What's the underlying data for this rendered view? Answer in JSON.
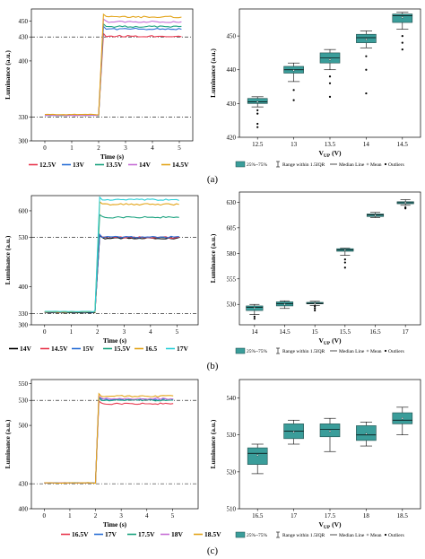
{
  "colors": {
    "box_fill": "#3a9d9a",
    "box_edge": "#1f4d4b",
    "refline": "#000000",
    "v1": "#e8384f",
    "v2": "#2a6fd6",
    "v3": "#1aa27f",
    "v4": "#c66ed6",
    "v5": "#e3a51b",
    "v6": "#2ad0d8"
  },
  "panel_labels": [
    "(a)",
    "(b)",
    "(c)"
  ],
  "box_legend": {
    "box": "25%~75%",
    "range": "Range within 1.5IQR",
    "median": "Median Line",
    "mean": "Mean",
    "outliers": "Outliers"
  },
  "chart_data": [
    {
      "type": "line",
      "panel": "(a)",
      "xlabel": "Time (s)",
      "ylabel": "Luminance (a.u.)",
      "xlim": [
        -0.5,
        5.5
      ],
      "ylim": [
        300,
        465
      ],
      "xticks": [
        "0",
        "1",
        "2",
        "3",
        "4",
        "5"
      ],
      "yticks": [
        "300",
        "330",
        "400",
        "430",
        "450"
      ],
      "ref_lines": [
        330,
        430
      ],
      "step_time": 2.1,
      "series": [
        {
          "name": "12.5V",
          "color": "#e8384f",
          "before": 332,
          "after": 431
        },
        {
          "name": "13V",
          "color": "#2a6fd6",
          "before": 332,
          "after": 440
        },
        {
          "name": "13.5V",
          "color": "#1aa27f",
          "before": 332,
          "after": 443
        },
        {
          "name": "14V",
          "color": "#c66ed6",
          "before": 332,
          "after": 449
        },
        {
          "name": "14.5V",
          "color": "#e3a51b",
          "before": 333,
          "after": 455
        }
      ]
    },
    {
      "type": "box",
      "panel": "(a)",
      "xlabel": "V_UP (V)",
      "ylabel": "Luminance (a.u.)",
      "ylim": [
        420,
        458
      ],
      "yticks": [
        "420",
        "430",
        "440",
        "450"
      ],
      "categories": [
        "12.5",
        "13",
        "13.5",
        "14",
        "14.5"
      ],
      "boxes": [
        {
          "q1": 430.0,
          "median": 430.5,
          "q3": 431.5,
          "wlo": 429.0,
          "whi": 432.0,
          "mean": 430.5,
          "outliers": [
            428,
            427,
            424,
            423
          ]
        },
        {
          "q1": 439.0,
          "median": 440.0,
          "q3": 441.0,
          "wlo": 436.5,
          "whi": 442.0,
          "mean": 439.8,
          "outliers": [
            434,
            431
          ]
        },
        {
          "q1": 442.0,
          "median": 443.5,
          "q3": 445.0,
          "wlo": 440.0,
          "whi": 446.0,
          "mean": 443.0,
          "outliers": [
            438,
            436,
            432
          ]
        },
        {
          "q1": 448.0,
          "median": 449.5,
          "q3": 450.5,
          "wlo": 446.5,
          "whi": 451.5,
          "mean": 449.0,
          "outliers": [
            444,
            440,
            433
          ]
        },
        {
          "q1": 454.0,
          "median": 456.0,
          "q3": 456.5,
          "wlo": 452.0,
          "whi": 457.0,
          "mean": 455.5,
          "outliers": [
            450,
            448,
            446
          ]
        }
      ]
    },
    {
      "type": "line",
      "panel": "(b)",
      "xlabel": "Time (s)",
      "ylabel": "Luminance (a.u.)",
      "xlim": [
        -0.5,
        5.8
      ],
      "ylim": [
        300,
        640
      ],
      "xticks": [
        "0",
        "1",
        "2",
        "3",
        "4",
        "5"
      ],
      "yticks": [
        "300",
        "330",
        "400",
        "530",
        "600"
      ],
      "ref_lines": [
        330,
        530
      ],
      "step_time": 2.0,
      "series": [
        {
          "name": "14V",
          "color": "#000000",
          "before": 332,
          "after": 528
        },
        {
          "name": "14.5V",
          "color": "#e8384f",
          "before": 333,
          "after": 530
        },
        {
          "name": "15V",
          "color": "#2a6fd6",
          "before": 333,
          "after": 531
        },
        {
          "name": "15.5V",
          "color": "#1aa27f",
          "before": 334,
          "after": 583
        },
        {
          "name": "16.5",
          "color": "#e3a51b",
          "before": 334,
          "after": 617
        },
        {
          "name": "17V",
          "color": "#2ad0d8",
          "before": 335,
          "after": 629
        }
      ]
    },
    {
      "type": "box",
      "panel": "(b)",
      "xlabel": "V_UP (V)",
      "ylabel": "Luminance (a.u.)",
      "ylim": [
        510,
        640
      ],
      "yticks": [
        "530",
        "555",
        "580",
        "605",
        "630"
      ],
      "categories": [
        "14",
        "14.5",
        "15",
        "15.5",
        "16.5",
        "17"
      ],
      "boxes": [
        {
          "q1": 524.0,
          "median": 527.0,
          "q3": 528.5,
          "wlo": 520.0,
          "whi": 530.0,
          "mean": 526.5,
          "outliers": [
            518,
            516
          ]
        },
        {
          "q1": 528.5,
          "median": 530.5,
          "q3": 532.5,
          "wlo": 526.0,
          "whi": 533.5,
          "mean": 530.0,
          "outliers": []
        },
        {
          "q1": 530.5,
          "median": 531.0,
          "q3": 532.0,
          "wlo": 529.0,
          "whi": 533.0,
          "mean": 531.0,
          "outliers": [
            528,
            526,
            524
          ]
        },
        {
          "q1": 582.0,
          "median": 583.5,
          "q3": 584.5,
          "wlo": 578.0,
          "whi": 585.0,
          "mean": 583.0,
          "outliers": [
            574,
            571,
            566
          ]
        },
        {
          "q1": 616.0,
          "median": 617.5,
          "q3": 618.5,
          "wlo": 615.0,
          "whi": 620.0,
          "mean": 617.0,
          "outliers": []
        },
        {
          "q1": 628.5,
          "median": 629.5,
          "q3": 630.5,
          "wlo": 627.0,
          "whi": 632.5,
          "mean": 629.5,
          "outliers": [
            625,
            624
          ]
        }
      ]
    },
    {
      "type": "line",
      "panel": "(c)",
      "xlabel": "Time (s)",
      "ylabel": "Luminance (a.u.)",
      "xlim": [
        -0.5,
        6.0
      ],
      "ylim": [
        400,
        555
      ],
      "xticks": [
        "0",
        "1",
        "2",
        "3",
        "4",
        "5"
      ],
      "yticks": [
        "400",
        "430",
        "500",
        "530",
        "550"
      ],
      "ref_lines": [
        430,
        530
      ],
      "step_time": 2.05,
      "series": [
        {
          "name": "16.5V",
          "color": "#e8384f",
          "before": 431,
          "after": 526
        },
        {
          "name": "17V",
          "color": "#2a6fd6",
          "before": 431,
          "after": 531
        },
        {
          "name": "17.5V",
          "color": "#1aa27f",
          "before": 431,
          "after": 530
        },
        {
          "name": "18V",
          "color": "#c66ed6",
          "before": 431,
          "after": 532
        },
        {
          "name": "18.5V",
          "color": "#e3a51b",
          "before": 431,
          "after": 535
        }
      ]
    },
    {
      "type": "box",
      "panel": "(c)",
      "xlabel": "V_UP (V)",
      "ylabel": "Luminance (a.u.)",
      "ylim": [
        510,
        545
      ],
      "yticks": [
        "510",
        "520",
        "530",
        "540"
      ],
      "categories": [
        "16.5",
        "17",
        "17.5",
        "18",
        "18.5"
      ],
      "boxes": [
        {
          "q1": 522.0,
          "median": 525.0,
          "q3": 526.5,
          "wlo": 519.5,
          "whi": 527.5,
          "mean": 524.5,
          "outliers": []
        },
        {
          "q1": 529.0,
          "median": 531.0,
          "q3": 533.0,
          "wlo": 527.5,
          "whi": 534.0,
          "mean": 530.8,
          "outliers": []
        },
        {
          "q1": 529.5,
          "median": 531.5,
          "q3": 533.0,
          "wlo": 525.5,
          "whi": 534.5,
          "mean": 531.0,
          "outliers": []
        },
        {
          "q1": 528.5,
          "median": 530.0,
          "q3": 532.5,
          "wlo": 527.0,
          "whi": 533.5,
          "mean": 530.3,
          "outliers": []
        },
        {
          "q1": 533.0,
          "median": 534.0,
          "q3": 536.0,
          "wlo": 530.0,
          "whi": 537.5,
          "mean": 534.5,
          "outliers": []
        }
      ]
    }
  ]
}
